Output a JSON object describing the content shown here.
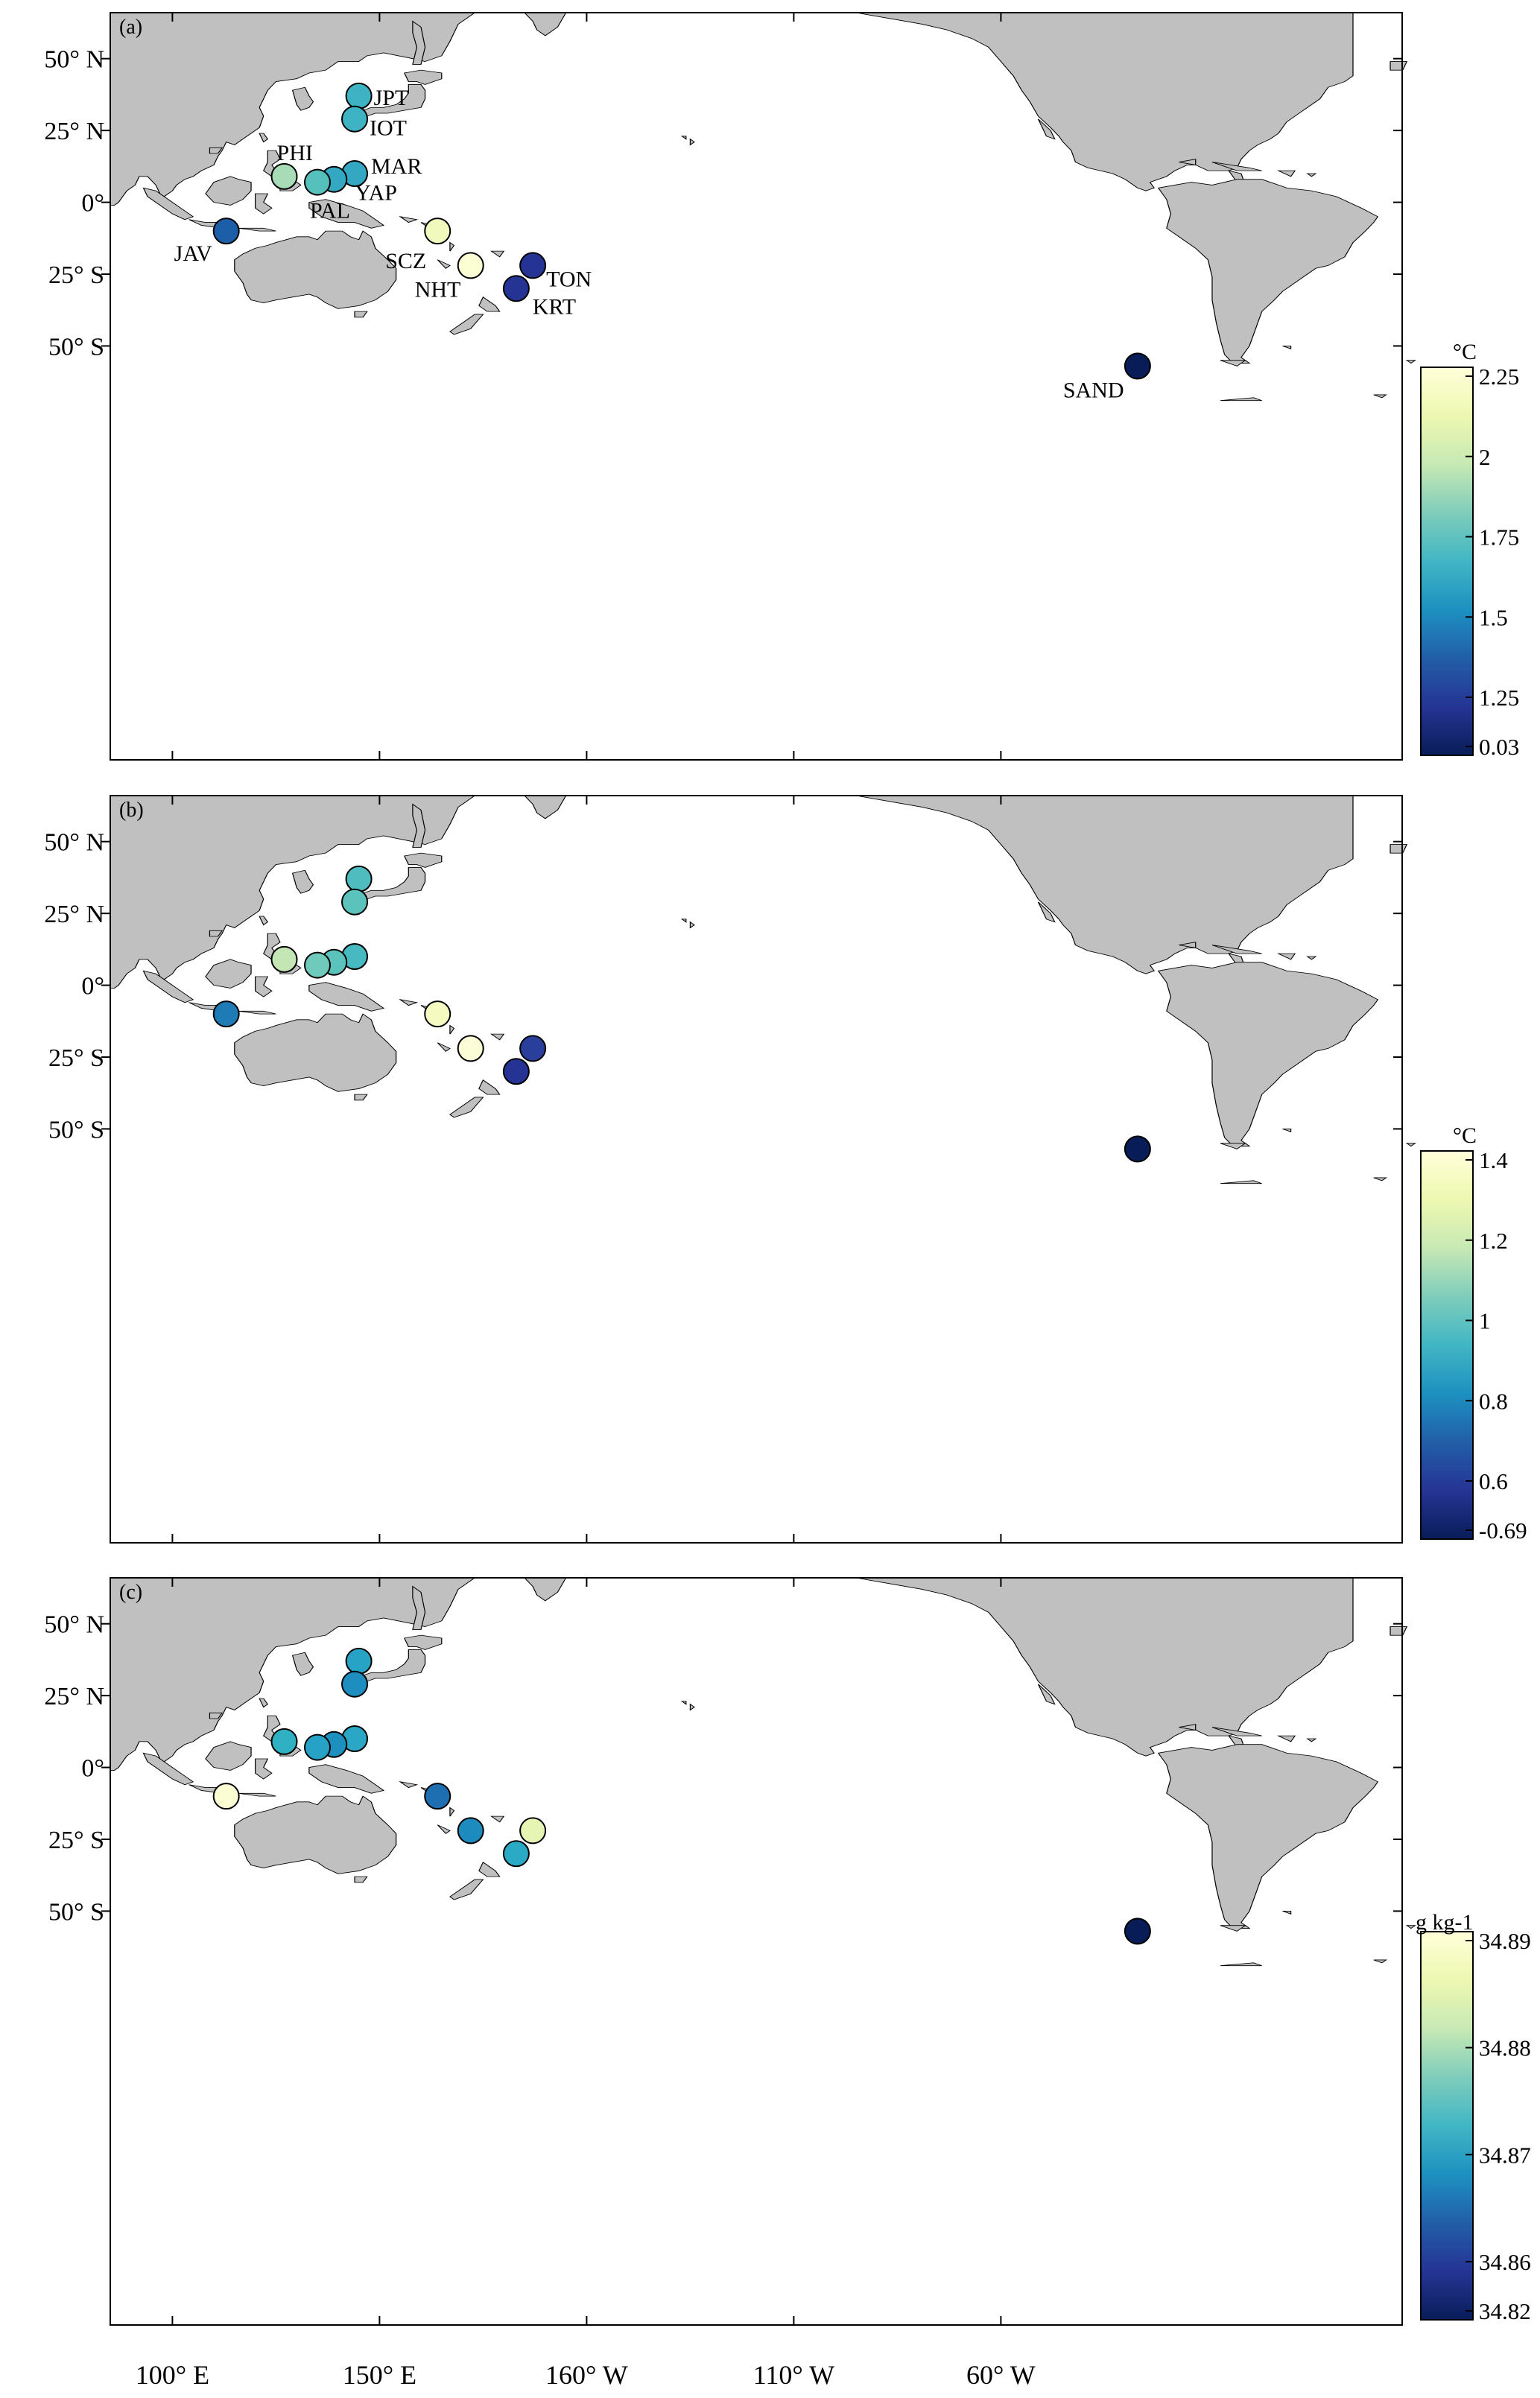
{
  "colors": {
    "land": "#c0c0c0",
    "coast": "#000000",
    "frame": "#000000",
    "background": "#ffffff"
  },
  "axes": {
    "lat_labels": [
      "50° N",
      "25° N",
      "0°",
      "25° S",
      "50° S"
    ],
    "lon_labels": [
      "100° E",
      "150° E",
      "160° W",
      "110° W",
      "60° W"
    ]
  },
  "sites": [
    {
      "code": "JPT",
      "lon": 145,
      "lat": 37
    },
    {
      "code": "IOT",
      "lon": 144,
      "lat": 29
    },
    {
      "code": "PHI",
      "lon": 127,
      "lat": 9
    },
    {
      "code": "MAR",
      "lon": 144,
      "lat": 10
    },
    {
      "code": "YAP",
      "lon": 139,
      "lat": 8
    },
    {
      "code": "PAL",
      "lon": 135,
      "lat": 7
    },
    {
      "code": "JAV",
      "lon": 113,
      "lat": -10
    },
    {
      "code": "SCZ",
      "lon": 164,
      "lat": -10
    },
    {
      "code": "NHT",
      "lon": 172,
      "lat": -22
    },
    {
      "code": "TON",
      "lon": -173,
      "lat": -22
    },
    {
      "code": "KRT",
      "lon": -177,
      "lat": -30
    },
    {
      "code": "SAND",
      "lon": -27,
      "lat": -57
    }
  ],
  "panels": [
    {
      "id": "(a)",
      "unit": "°C",
      "cbar_ticks": [
        "2.25",
        "2",
        "1.75",
        "1.5",
        "1.25",
        "0.03"
      ],
      "show_site_labels": true,
      "site_colors": [
        "#3eb3c3",
        "#3eb3c3",
        "#a8dcb6",
        "#34a8c2",
        "#34a8c2",
        "#56c0bc",
        "#1d5ea8",
        "#f1f9bd",
        "#fbfdd2",
        "#253494",
        "#253494",
        "#081d58"
      ]
    },
    {
      "id": "(b)",
      "unit": "°C",
      "cbar_ticks": [
        "1.4",
        "1.2",
        "1",
        "0.8",
        "0.6",
        "-0.69"
      ],
      "show_site_labels": false,
      "site_colors": [
        "#4fbdbf",
        "#5cc2bc",
        "#c3e6b4",
        "#47b9c1",
        "#5cc2bc",
        "#6fcabb",
        "#1f7bb5",
        "#f4fac0",
        "#fbfdd6",
        "#2a3f9c",
        "#253494",
        "#081d58"
      ]
    },
    {
      "id": "(c)",
      "unit": "g kg-1",
      "cbar_ticks": [
        "34.89",
        "34.88",
        "34.87",
        "34.86",
        "34.82"
      ],
      "show_site_labels": false,
      "site_colors": [
        "#26a3c5",
        "#1e8dbf",
        "#2fb0c3",
        "#2aa7c4",
        "#1e90c0",
        "#25a2c5",
        "#fbfdd2",
        "#1d6fb1",
        "#1e8bbf",
        "#e6f5b4",
        "#2baac5",
        "#081d58"
      ]
    }
  ]
}
